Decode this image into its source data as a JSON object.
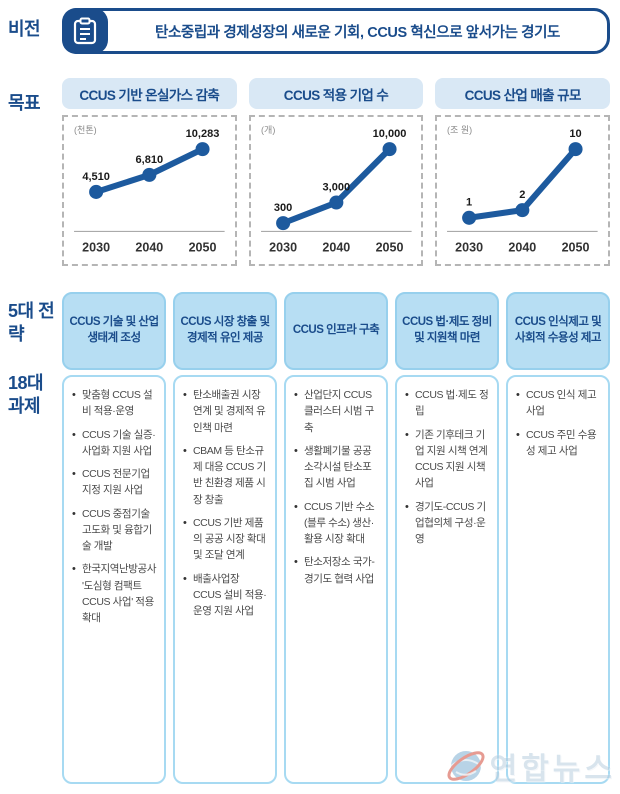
{
  "vision": {
    "label": "비전",
    "text": "탄소중립과 경제성장의 새로운 기회, CCUS 혁신으로 앞서가는 경기도"
  },
  "goals": {
    "label": "목표"
  },
  "chart_data": [
    {
      "type": "line",
      "title": "CCUS 기반 온실가스 감축",
      "unit": "(천톤)",
      "x": [
        "2030",
        "2040",
        "2050"
      ],
      "values": [
        4510,
        6810,
        10283
      ],
      "labels": [
        "4,510",
        "6,810",
        "10,283"
      ],
      "line_color": "#1d5a9e",
      "grid": false,
      "legend": "none"
    },
    {
      "type": "line",
      "title": "CCUS 적용 기업 수",
      "unit": "(개)",
      "x": [
        "2030",
        "2040",
        "2050"
      ],
      "values": [
        300,
        3000,
        10000
      ],
      "labels": [
        "300",
        "3,000",
        "10,000"
      ],
      "line_color": "#1d5a9e",
      "grid": false,
      "legend": "none"
    },
    {
      "type": "line",
      "title": "CCUS 산업 매출 규모",
      "unit": "(조 원)",
      "x": [
        "2030",
        "2040",
        "2050"
      ],
      "values": [
        1,
        2,
        10
      ],
      "labels": [
        "1",
        "2",
        "10"
      ],
      "line_color": "#1d5a9e",
      "grid": false,
      "legend": "none"
    }
  ],
  "strategies": {
    "label_top": "5대 전략",
    "label_bottom": "18대 과제",
    "columns": [
      {
        "title": "CCUS 기술 및 산업 생태계 조성",
        "items": [
          "맞춤형 CCUS 설비 적용·운영",
          "CCUS 기술 실증·사업화 지원 사업",
          "CCUS 전문기업 지정 지원 사업",
          "CCUS 중점기술 고도화 및 융합기술 개발",
          "한국지역난방공사 '도심형 컴팩트 CCUS 사업' 적용 확대"
        ]
      },
      {
        "title": "CCUS 시장 창출 및 경제적 유인 제공",
        "items": [
          "탄소배출권 시장 연계 및 경제적 유인책 마련",
          "CBAM 등 탄소규제 대응 CCUS 기반 친환경 제품 시장 창출",
          "CCUS 기반 제품의 공공 시장 확대 및 조달 연계",
          "배출사업장 CCUS 설비 적용·운영 지원 사업"
        ]
      },
      {
        "title": "CCUS 인프라 구축",
        "items": [
          "산업단지 CCUS 클러스터 시범 구축",
          "생활폐기물 공공소각시설 탄소포집 시범 사업",
          "CCUS 기반 수소(블루 수소) 생산·활용 시장 확대",
          "탄소저장소 국가-경기도 협력 사업"
        ]
      },
      {
        "title": "CCUS 법·제도 정비 및 지원책 마련",
        "items": [
          "CCUS 법·제도 정립",
          "기존 기후테크 기업 지원 시책 연계 CCUS 지원 시책 사업",
          "경기도-CCUS 기업협의체 구성·운영"
        ]
      },
      {
        "title": "CCUS 인식제고 및 사회적 수용성 제고",
        "items": [
          "CCUS 인식 제고 사업",
          "CCUS 주민 수용성 제고 사업"
        ]
      }
    ]
  },
  "watermark": {
    "text": "연합뉴스"
  },
  "colors": {
    "navy": "#1a4c8b",
    "chart_line": "#1d5a9e",
    "chart_title_bg": "#d9e8f5",
    "col_header_bg": "#b7def3",
    "col_header_border": "#97d0ed",
    "col_body_border": "#a7daf2"
  }
}
